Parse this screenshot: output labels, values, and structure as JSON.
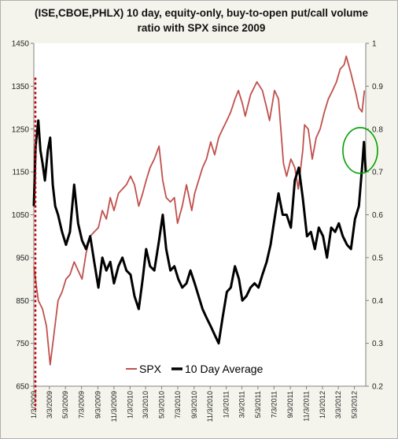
{
  "chart_data": {
    "type": "line",
    "title": "(ISE,CBOE,PHLX) 10 day, equity-only, buy-to-open put/call volume ratio with SPX since 2009",
    "xlabel": "",
    "ylabel": "",
    "x_ticks": [
      "1/3/2009",
      "3/3/2009",
      "5/3/2009",
      "7/3/2009",
      "9/3/2009",
      "11/3/2009",
      "1/3/2010",
      "3/3/2010",
      "5/3/2010",
      "7/3/2010",
      "9/3/2010",
      "11/3/2010",
      "1/3/2011",
      "3/3/2011",
      "5/3/2011",
      "7/3/2011",
      "9/3/2011",
      "11/3/2011",
      "1/3/2012",
      "3/3/2012",
      "5/3/2012"
    ],
    "xlim": [
      "2009-01-03",
      "2012-06-15"
    ],
    "y_left": {
      "lim": [
        650,
        1450
      ],
      "ticks": [
        650,
        750,
        850,
        950,
        1050,
        1150,
        1250,
        1350,
        1450
      ]
    },
    "y_right": {
      "lim": [
        0.2,
        1.0
      ],
      "ticks": [
        "0.2",
        "0.3",
        "0.4",
        "0.5",
        "0.6",
        "0.7",
        "0.8",
        "0.9",
        "1"
      ]
    },
    "grid": false,
    "legend_placement": "bottom-right",
    "series": [
      {
        "name": "SPX",
        "axis": "left",
        "color": "#c0504d",
        "x": [
          "2009-01-03",
          "2009-01-20",
          "2009-02-05",
          "2009-02-20",
          "2009-03-06",
          "2009-03-20",
          "2009-04-05",
          "2009-04-20",
          "2009-05-05",
          "2009-05-20",
          "2009-06-05",
          "2009-06-20",
          "2009-07-05",
          "2009-07-20",
          "2009-08-05",
          "2009-08-20",
          "2009-09-05",
          "2009-09-20",
          "2009-10-05",
          "2009-10-20",
          "2009-11-03",
          "2009-11-20",
          "2009-12-05",
          "2009-12-20",
          "2010-01-05",
          "2010-01-20",
          "2010-02-05",
          "2010-02-20",
          "2010-03-05",
          "2010-03-20",
          "2010-04-05",
          "2010-04-23",
          "2010-05-07",
          "2010-05-20",
          "2010-06-05",
          "2010-06-20",
          "2010-07-02",
          "2010-07-20",
          "2010-08-05",
          "2010-08-25",
          "2010-09-05",
          "2010-09-20",
          "2010-10-05",
          "2010-10-20",
          "2010-11-05",
          "2010-11-20",
          "2010-12-05",
          "2010-12-20",
          "2011-01-05",
          "2011-01-20",
          "2011-02-05",
          "2011-02-18",
          "2011-03-05",
          "2011-03-16",
          "2011-04-05",
          "2011-04-29",
          "2011-05-20",
          "2011-06-05",
          "2011-06-16",
          "2011-07-05",
          "2011-07-20",
          "2011-08-08",
          "2011-08-20",
          "2011-09-05",
          "2011-09-20",
          "2011-10-03",
          "2011-10-20",
          "2011-10-27",
          "2011-11-10",
          "2011-11-25",
          "2011-12-10",
          "2011-12-25",
          "2012-01-10",
          "2012-01-25",
          "2012-02-10",
          "2012-02-25",
          "2012-03-10",
          "2012-03-25",
          "2012-04-02",
          "2012-04-20",
          "2012-05-10",
          "2012-05-20",
          "2012-06-01",
          "2012-06-10"
        ],
        "values": [
          930,
          850,
          830,
          790,
          700,
          770,
          850,
          870,
          900,
          910,
          940,
          920,
          900,
          960,
          1000,
          1010,
          1020,
          1060,
          1040,
          1090,
          1060,
          1100,
          1110,
          1120,
          1140,
          1120,
          1070,
          1100,
          1130,
          1160,
          1180,
          1210,
          1130,
          1090,
          1080,
          1090,
          1030,
          1070,
          1120,
          1060,
          1100,
          1130,
          1160,
          1180,
          1220,
          1190,
          1230,
          1250,
          1270,
          1290,
          1320,
          1340,
          1310,
          1280,
          1330,
          1360,
          1340,
          1300,
          1270,
          1340,
          1320,
          1170,
          1140,
          1180,
          1160,
          1110,
          1200,
          1260,
          1250,
          1180,
          1230,
          1250,
          1290,
          1320,
          1340,
          1360,
          1390,
          1400,
          1420,
          1380,
          1330,
          1300,
          1290,
          1340
        ]
      },
      {
        "name": "10 Day Average",
        "axis": "right",
        "color": "#000000",
        "x": [
          "2009-01-03",
          "2009-01-10",
          "2009-01-20",
          "2009-01-28",
          "2009-02-05",
          "2009-02-14",
          "2009-02-25",
          "2009-03-06",
          "2009-03-16",
          "2009-03-25",
          "2009-04-05",
          "2009-04-20",
          "2009-05-05",
          "2009-05-20",
          "2009-06-05",
          "2009-06-20",
          "2009-07-05",
          "2009-07-20",
          "2009-08-05",
          "2009-08-20",
          "2009-09-05",
          "2009-09-20",
          "2009-10-05",
          "2009-10-20",
          "2009-11-03",
          "2009-11-20",
          "2009-12-05",
          "2009-12-20",
          "2010-01-05",
          "2010-01-20",
          "2010-02-05",
          "2010-02-20",
          "2010-03-05",
          "2010-03-20",
          "2010-04-05",
          "2010-04-23",
          "2010-05-07",
          "2010-05-20",
          "2010-06-05",
          "2010-06-20",
          "2010-07-05",
          "2010-07-20",
          "2010-08-05",
          "2010-08-20",
          "2010-09-05",
          "2010-09-20",
          "2010-10-05",
          "2010-10-20",
          "2010-11-05",
          "2010-11-20",
          "2010-12-05",
          "2010-12-20",
          "2011-01-05",
          "2011-01-20",
          "2011-02-05",
          "2011-02-20",
          "2011-03-05",
          "2011-03-20",
          "2011-04-05",
          "2011-04-20",
          "2011-05-05",
          "2011-05-20",
          "2011-06-05",
          "2011-06-20",
          "2011-07-05",
          "2011-07-20",
          "2011-08-05",
          "2011-08-20",
          "2011-09-05",
          "2011-09-20",
          "2011-10-05",
          "2011-10-20",
          "2011-11-05",
          "2011-11-20",
          "2011-12-05",
          "2011-12-20",
          "2012-01-05",
          "2012-01-20",
          "2012-02-05",
          "2012-02-20",
          "2012-03-05",
          "2012-03-20",
          "2012-04-05",
          "2012-04-20",
          "2012-05-05",
          "2012-05-20",
          "2012-06-01",
          "2012-06-08",
          "2012-06-15"
        ],
        "values": [
          0.62,
          0.76,
          0.82,
          0.75,
          0.72,
          0.68,
          0.75,
          0.78,
          0.67,
          0.62,
          0.6,
          0.56,
          0.53,
          0.56,
          0.67,
          0.58,
          0.54,
          0.52,
          0.55,
          0.49,
          0.43,
          0.5,
          0.47,
          0.49,
          0.44,
          0.48,
          0.5,
          0.47,
          0.46,
          0.41,
          0.38,
          0.45,
          0.52,
          0.48,
          0.47,
          0.54,
          0.6,
          0.52,
          0.47,
          0.48,
          0.45,
          0.43,
          0.44,
          0.47,
          0.44,
          0.41,
          0.38,
          0.36,
          0.34,
          0.32,
          0.3,
          0.36,
          0.42,
          0.43,
          0.48,
          0.45,
          0.4,
          0.41,
          0.43,
          0.44,
          0.43,
          0.46,
          0.49,
          0.53,
          0.59,
          0.65,
          0.6,
          0.6,
          0.57,
          0.68,
          0.71,
          0.64,
          0.55,
          0.56,
          0.52,
          0.57,
          0.55,
          0.5,
          0.57,
          0.56,
          0.58,
          0.55,
          0.53,
          0.52,
          0.59,
          0.62,
          0.71,
          0.77,
          0.7
        ]
      }
    ],
    "annotations": [
      {
        "type": "vertical-dotted-line",
        "x": "2009-01-09",
        "color": "#c00000"
      },
      {
        "type": "ellipse-highlight",
        "x_center": "2012-05-25",
        "y_right_center": 0.75,
        "color": "#00a000"
      }
    ]
  }
}
